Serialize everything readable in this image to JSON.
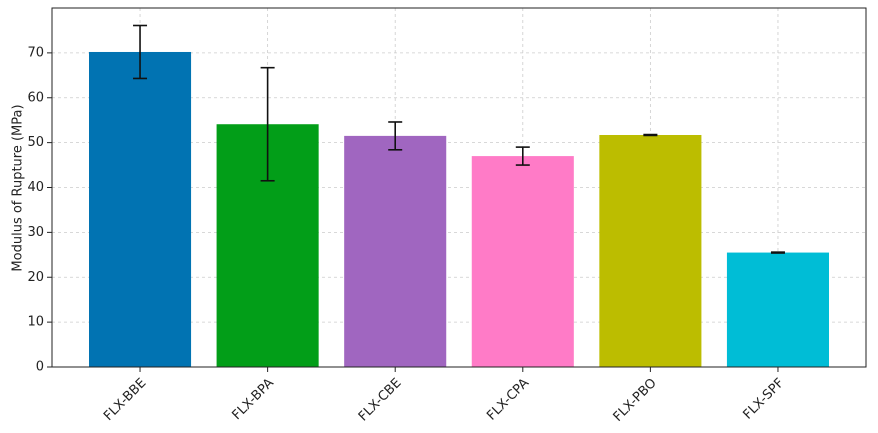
{
  "chart_data": {
    "type": "bar",
    "y_label": "Modulus of Rupture (MPa)",
    "categories": [
      "FLX-BBE",
      "FLX-BPA",
      "FLX-CBE",
      "FLX-CPA",
      "FLX-PBO",
      "FLX-SPF"
    ],
    "values": [
      70.2,
      54.1,
      51.5,
      47.0,
      51.7,
      25.5
    ],
    "errors": [
      5.9,
      12.6,
      3.1,
      2.0,
      0.1,
      0.1
    ],
    "colors": [
      "#0173b2",
      "#029e18",
      "#a066c0",
      "#ff7bc7",
      "#bcbd00",
      "#00bdd6"
    ],
    "ylim": [
      0,
      80
    ],
    "yticks": [
      0,
      10,
      20,
      30,
      40,
      50,
      60,
      70
    ],
    "grid": true
  }
}
